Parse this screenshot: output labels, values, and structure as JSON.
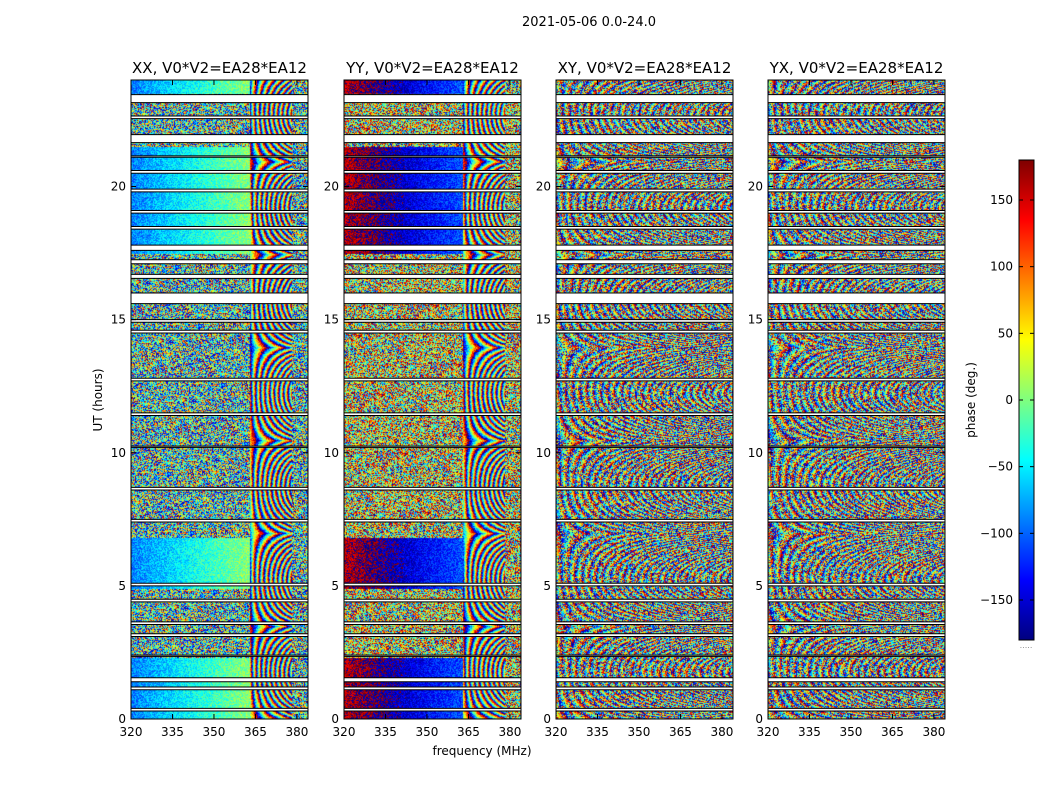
{
  "chart_data": {
    "type": "heatmap",
    "title": "2021-05-06 0.0-24.0",
    "xlabel": "frequency (MHz)",
    "ylabel": "UT (hours)",
    "xlim": [
      320,
      384
    ],
    "ylim": [
      0,
      24
    ],
    "xticks": [
      320,
      335,
      350,
      365,
      380
    ],
    "yticks": [
      0,
      5,
      10,
      15,
      20
    ],
    "colorbar": {
      "label": "phase (deg.)",
      "range": [
        -180,
        180
      ],
      "ticks": [
        -150,
        -100,
        -50,
        0,
        50,
        100,
        150
      ],
      "colormap": "jet",
      "footnote": "....."
    },
    "colors": [
      "#00007f",
      "#0000ff",
      "#007fff",
      "#00ffff",
      "#7fff7f",
      "#ffff00",
      "#ff7f00",
      "#ff0000",
      "#7f0000"
    ],
    "panels": [
      {
        "title": "XX, V0*V2=EA28*EA12",
        "mean_phase_deg": -90
      },
      {
        "title": "YY, V0*V2=EA28*EA12",
        "mean_phase_deg": 160
      },
      {
        "title": "XY, V0*V2=EA28*EA12",
        "mean_phase_deg": null
      },
      {
        "title": "YX, V0*V2=EA28*EA12",
        "mean_phase_deg": null
      }
    ],
    "flagged_time_ranges_h": [
      [
        23.15,
        23.45
      ],
      [
        22.55,
        22.65
      ],
      [
        21.65,
        21.95
      ],
      [
        21.1,
        21.15
      ],
      [
        20.5,
        20.6
      ],
      [
        19.8,
        19.9
      ],
      [
        19.0,
        19.1
      ],
      [
        18.4,
        18.5
      ],
      [
        17.6,
        17.8
      ],
      [
        17.1,
        17.25
      ],
      [
        16.55,
        16.7
      ],
      [
        15.6,
        16.0
      ],
      [
        14.9,
        15.0
      ],
      [
        14.5,
        14.6
      ],
      [
        12.7,
        12.8
      ],
      [
        11.4,
        11.5
      ],
      [
        10.2,
        10.25
      ],
      [
        8.6,
        8.7
      ],
      [
        7.4,
        7.5
      ],
      [
        5.0,
        5.1
      ],
      [
        4.4,
        4.5
      ],
      [
        3.55,
        3.65
      ],
      [
        3.1,
        3.2
      ],
      [
        2.35,
        2.4
      ],
      [
        1.4,
        1.55
      ],
      [
        1.1,
        1.2
      ],
      [
        0.3,
        0.4
      ]
    ]
  }
}
